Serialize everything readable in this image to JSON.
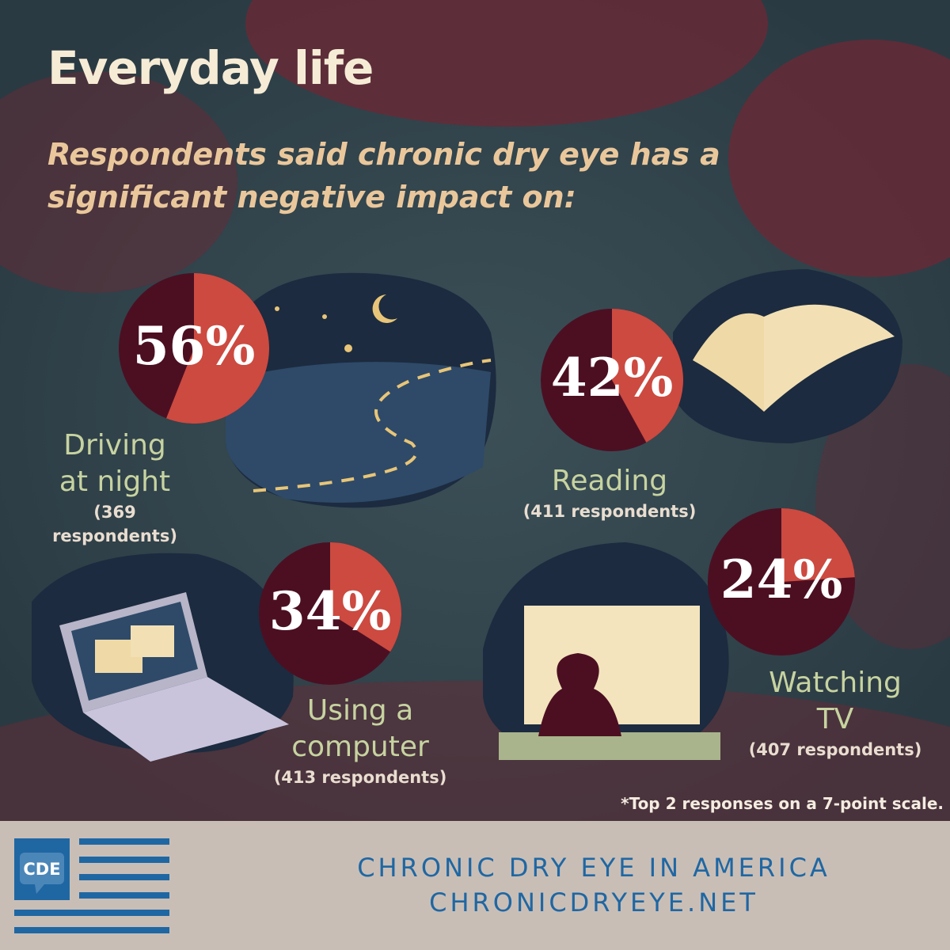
{
  "header": {
    "title": "Everyday life",
    "subtitle": "Respondents said chronic dry eye has a significant negative impact on:"
  },
  "chart_data": {
    "type": "pie",
    "charts": [
      {
        "label": "Driving at night",
        "respondents": "(369 respondents)",
        "value": 56,
        "display": "56%"
      },
      {
        "label": "Reading",
        "respondents": "(411 respondents)",
        "value": 42,
        "display": "42%"
      },
      {
        "label": "Using a computer",
        "respondents": "(413 respondents)",
        "value": 34,
        "display": "34%"
      },
      {
        "label": "Watching TV",
        "respondents": "(407 respondents)",
        "value": 24,
        "display": "24%"
      }
    ],
    "colors": {
      "highlight": "#cc4a40",
      "remainder": "#4c0f22"
    }
  },
  "labels": {
    "driving_1": "Driving",
    "driving_2": "at night",
    "computer_1": "Using a",
    "computer_2": "computer",
    "tv_1": "Watching",
    "tv_2": "TV"
  },
  "footnote": "*Top 2 responses on a 7-point scale.",
  "footer": {
    "logo_text": "CDE",
    "line1": "CHRONIC DRY EYE IN AMERICA",
    "line2": "CHRONICDRYEYE.NET"
  }
}
